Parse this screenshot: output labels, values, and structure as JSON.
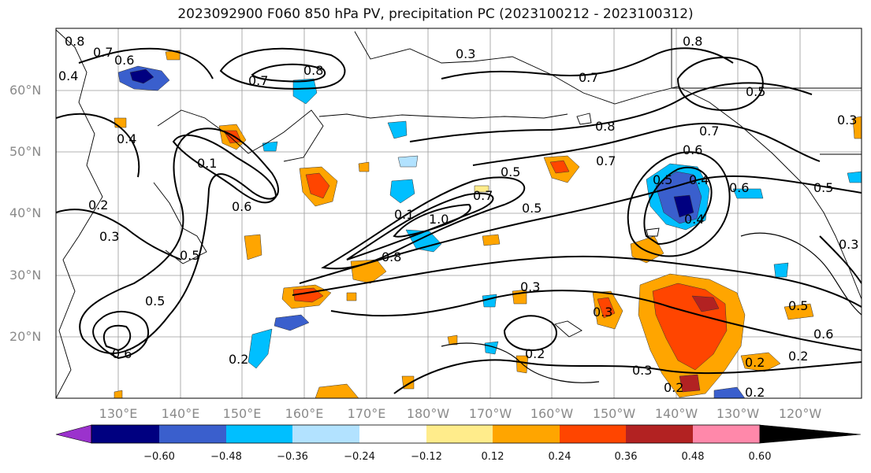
{
  "title": "2023092900 F060 850 hPa PV, precipitation PC (2023100212 - 2023100312)",
  "latitude_labels": [
    "60°N",
    "50°N",
    "40°N",
    "30°N",
    "20°N"
  ],
  "longitude_labels": [
    "130°E",
    "140°E",
    "150°E",
    "160°E",
    "170°E",
    "180°W",
    "170°W",
    "160°W",
    "150°W",
    "140°W",
    "130°W",
    "120°W"
  ],
  "contour_labels": [
    "0.8",
    "0.7",
    "0.6",
    "0.8",
    "0.3",
    "0.7",
    "0.8",
    "0.7",
    "0.4",
    "0.5",
    "0.1",
    "0.4",
    "0.6",
    "0.8",
    "0.7",
    "0.3",
    "0.5",
    "0.7",
    "0.1",
    "0.6",
    "0.2",
    "0.3",
    "1.0",
    "0.8",
    "0.7",
    "0.5",
    "0.5",
    "0.4",
    "0.4",
    "0.6",
    "0.5",
    "0.5",
    "0.5",
    "0.3",
    "0.3",
    "0.2",
    "0.6",
    "0.2",
    "0.2",
    "0.3",
    "0.2",
    "0.2",
    "0.5",
    "0.6",
    "0.3",
    "0.2"
  ],
  "colorbar": {
    "ticks": [
      "−0.60",
      "−0.48",
      "−0.36",
      "−0.24",
      "−0.12",
      "0.12",
      "0.24",
      "0.36",
      "0.48",
      "0.60"
    ],
    "colors": [
      "#9b32cd",
      "#000080",
      "#3a5fcd",
      "#00bfff",
      "#b2e2ff",
      "#ffffff",
      "#ffec8b",
      "#ffa500",
      "#ff4500",
      "#b22222",
      "#ff88aa"
    ]
  }
}
